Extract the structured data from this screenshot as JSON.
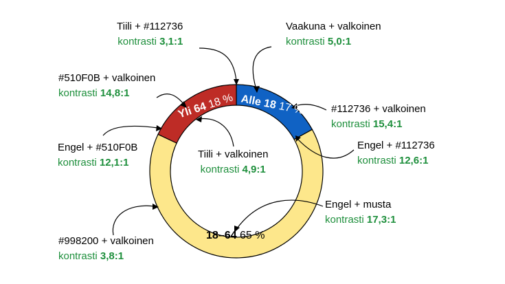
{
  "chart_data": {
    "type": "pie",
    "variant": "donut",
    "slices": [
      {
        "label": "Alle 18",
        "percent_text": "17 %",
        "value": 17,
        "color": "#1062c4"
      },
      {
        "label": "18–64",
        "percent_text": "65 %",
        "value": 65,
        "color": "#fde78b"
      },
      {
        "label": "Yli 64",
        "percent_text": "18 %",
        "value": 18,
        "color": "#be2c26"
      }
    ]
  },
  "annotations": [
    {
      "id": "a1",
      "title": "Tiili + #112736",
      "contrast_prefix": "kontrasti",
      "contrast_value": "3,1:1"
    },
    {
      "id": "a2",
      "title": "Vaakuna + valkoinen",
      "contrast_prefix": "kontrasti",
      "contrast_value": "5,0:1"
    },
    {
      "id": "a3",
      "title": "#510F0B + valkoinen",
      "contrast_prefix": "kontrasti",
      "contrast_value": "14,8:1"
    },
    {
      "id": "a4",
      "title": "#112736 + valkoinen",
      "contrast_prefix": "kontrasti",
      "contrast_value": "15,4:1"
    },
    {
      "id": "a5",
      "title": "Engel + #510F0B",
      "contrast_prefix": "kontrasti",
      "contrast_value": "12,1:1"
    },
    {
      "id": "a6",
      "title": "Engel + #112736",
      "contrast_prefix": "kontrasti",
      "contrast_value": "12,6:1"
    },
    {
      "id": "a7",
      "title": "Tiili + valkoinen",
      "contrast_prefix": "kontrasti",
      "contrast_value": "4,9:1"
    },
    {
      "id": "a8",
      "title": "Engel + musta",
      "contrast_prefix": "kontrasti",
      "contrast_value": "17,3:1"
    },
    {
      "id": "a9",
      "title": "#998200 + valkoinen",
      "contrast_prefix": "kontrasti",
      "contrast_value": "3,8:1"
    }
  ],
  "colors": {
    "blue": "#1062c4",
    "yellow": "#fde78b",
    "red": "#be2c26",
    "green_text": "#1e8f3c",
    "blue_segment_text": "#ffffff",
    "red_segment_text": "#ffffff",
    "yellow_segment_text": "#000000"
  }
}
